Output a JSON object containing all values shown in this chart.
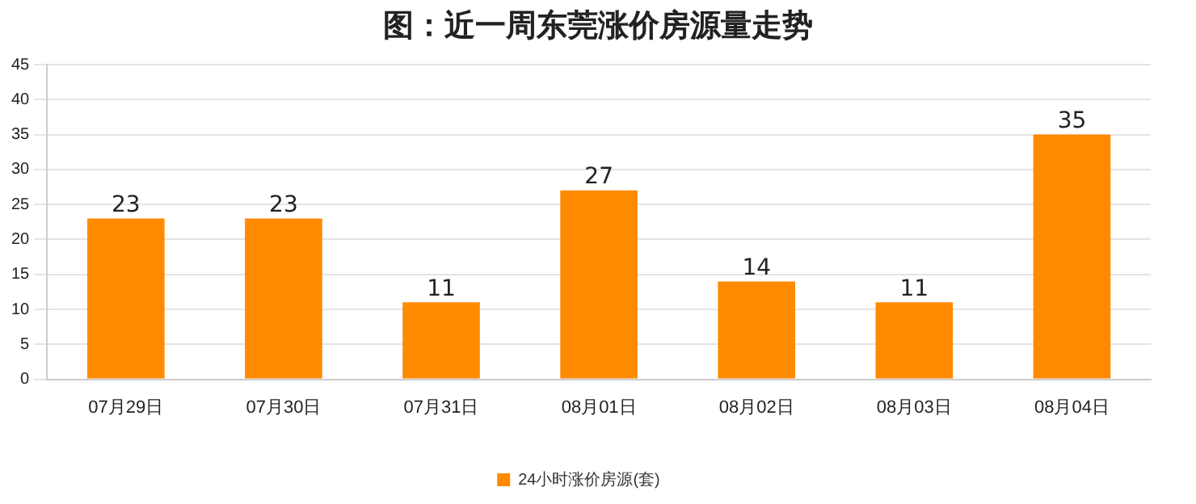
{
  "chart_data": {
    "type": "bar",
    "title": "图：近一周东莞涨价房源量走势",
    "categories": [
      "07月29日",
      "07月30日",
      "07月31日",
      "08月01日",
      "08月02日",
      "08月03日",
      "08月04日"
    ],
    "series": [
      {
        "name": "24小时涨价房源(套)",
        "color": "#ff8a00",
        "values": [
          23,
          23,
          11,
          27,
          14,
          11,
          35
        ]
      }
    ],
    "ylim": [
      0,
      45
    ],
    "yticks": [
      0,
      5,
      10,
      15,
      20,
      25,
      30,
      35,
      40,
      45
    ],
    "grid": "y",
    "legend": "bottom",
    "data_labels": true
  }
}
